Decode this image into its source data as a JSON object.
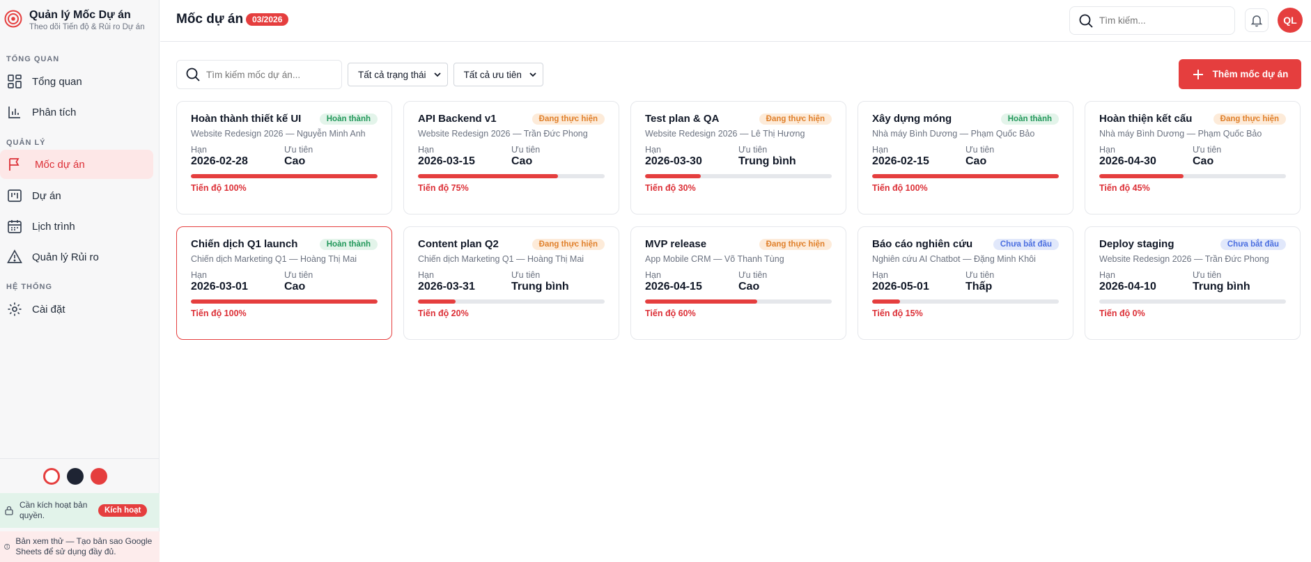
{
  "brand": {
    "title": "Quản lý Mốc Dự án",
    "subtitle": "Theo dõi Tiến độ & Rủi ro Dự án"
  },
  "sidebar": {
    "sections": [
      {
        "label": "TỔNG QUAN",
        "items": [
          {
            "label": "Tổng quan",
            "icon": "grid-icon"
          },
          {
            "label": "Phân tích",
            "icon": "bar-chart-icon"
          }
        ]
      },
      {
        "label": "QUẢN LÝ",
        "items": [
          {
            "label": "Mốc dự án",
            "icon": "flag-icon",
            "active": true
          },
          {
            "label": "Dự án",
            "icon": "kanban-icon"
          },
          {
            "label": "Lịch trình",
            "icon": "calendar-icon"
          },
          {
            "label": "Quản lý Rủi ro",
            "icon": "warning-icon"
          }
        ]
      },
      {
        "label": "HỆ THỐNG",
        "items": [
          {
            "label": "Cài đặt",
            "icon": "gear-icon"
          }
        ]
      }
    ],
    "theme_colors": [
      "#ffffff",
      "#1e2433",
      "#e53e3e"
    ],
    "license": {
      "text": "Cần kích hoạt bản quyền.",
      "button": "Kích hoạt"
    },
    "preview": {
      "text": "Bản xem thử — Tạo bản sao Google Sheets để sử dụng đầy đủ."
    }
  },
  "header": {
    "title": "Mốc dự án",
    "badge": "03/2026",
    "search_placeholder": "Tìm kiếm...",
    "avatar": "QL"
  },
  "toolbar": {
    "search_placeholder": "Tìm kiếm mốc dự án...",
    "status_filter": "Tất cả trạng thái",
    "priority_filter": "Tất cả ưu tiên",
    "add_button": "Thêm mốc dự án"
  },
  "labels": {
    "deadline": "Hạn",
    "priority": "Ưu tiên"
  },
  "milestones": [
    {
      "title": "Hoàn thành thiết kế UI",
      "status": "Hoàn thành",
      "status_type": "done",
      "sub": "Website Redesign 2026 — Nguyễn Minh Anh",
      "deadline": "2026-02-28",
      "priority": "Cao",
      "progress": 100,
      "progress_text": "Tiến độ 100%"
    },
    {
      "title": "API Backend v1",
      "status": "Đang thực hiện",
      "status_type": "doing",
      "sub": "Website Redesign 2026 — Trần Đức Phong",
      "deadline": "2026-03-15",
      "priority": "Cao",
      "progress": 75,
      "progress_text": "Tiến độ 75%"
    },
    {
      "title": "Test plan & QA",
      "status": "Đang thực hiện",
      "status_type": "doing",
      "sub": "Website Redesign 2026 — Lê Thị Hương",
      "deadline": "2026-03-30",
      "priority": "Trung bình",
      "progress": 30,
      "progress_text": "Tiến độ 30%"
    },
    {
      "title": "Xây dựng móng",
      "status": "Hoàn thành",
      "status_type": "done",
      "sub": "Nhà máy Bình Dương — Phạm Quốc Bảo",
      "deadline": "2026-02-15",
      "priority": "Cao",
      "progress": 100,
      "progress_text": "Tiến độ 100%"
    },
    {
      "title": "Hoàn thiện kết cấu",
      "status": "Đang thực hiện",
      "status_type": "doing",
      "sub": "Nhà máy Bình Dương — Phạm Quốc Bảo",
      "deadline": "2026-04-30",
      "priority": "Cao",
      "progress": 45,
      "progress_text": "Tiến độ 45%"
    },
    {
      "title": "Chiến dịch Q1 launch",
      "status": "Hoàn thành",
      "status_type": "done",
      "sub": "Chiến dịch Marketing Q1 — Hoàng Thị Mai",
      "deadline": "2026-03-01",
      "priority": "Cao",
      "progress": 100,
      "progress_text": "Tiến độ 100%",
      "selected": true
    },
    {
      "title": "Content plan Q2",
      "status": "Đang thực hiện",
      "status_type": "doing",
      "sub": "Chiến dịch Marketing Q1 — Hoàng Thị Mai",
      "deadline": "2026-03-31",
      "priority": "Trung bình",
      "progress": 20,
      "progress_text": "Tiến độ 20%"
    },
    {
      "title": "MVP release",
      "status": "Đang thực hiện",
      "status_type": "doing",
      "sub": "App Mobile CRM — Võ Thanh Tùng",
      "deadline": "2026-04-15",
      "priority": "Cao",
      "progress": 60,
      "progress_text": "Tiến độ 60%"
    },
    {
      "title": "Báo cáo nghiên cứu",
      "status": "Chưa bắt đầu",
      "status_type": "todo",
      "sub": "Nghiên cứu AI Chatbot — Đặng Minh Khôi",
      "deadline": "2026-05-01",
      "priority": "Thấp",
      "progress": 15,
      "progress_text": "Tiến độ 15%"
    },
    {
      "title": "Deploy staging",
      "status": "Chưa bắt đầu",
      "status_type": "todo",
      "sub": "Website Redesign 2026 — Trần Đức Phong",
      "deadline": "2026-04-10",
      "priority": "Trung bình",
      "progress": 0,
      "progress_text": "Tiến độ 0%"
    }
  ]
}
